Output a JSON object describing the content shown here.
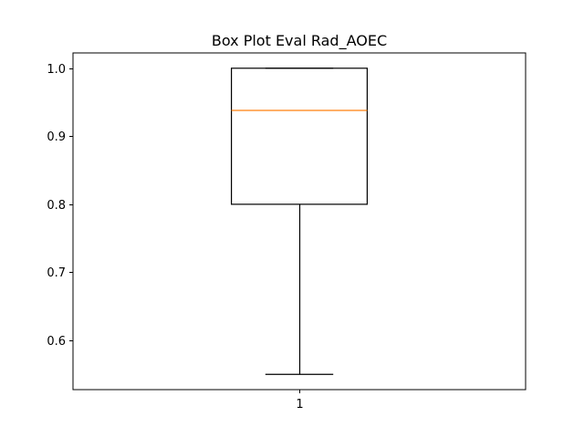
{
  "chart_data": {
    "type": "boxplot",
    "title": "Box Plot Eval Rad_AOEC",
    "xlabel": "",
    "ylabel": "",
    "categories": [
      "1"
    ],
    "boxes": [
      {
        "label": "1",
        "whisker_low": 0.55,
        "q1": 0.8,
        "median": 0.938,
        "q3": 1.0,
        "whisker_high": 1.0
      }
    ],
    "xlim": [
      0.5,
      1.5
    ],
    "ylim": [
      0.5275,
      1.0225
    ],
    "yticks": [
      0.6,
      0.7,
      0.8,
      0.9,
      1.0
    ],
    "ytick_labels": [
      "0.6",
      "0.7",
      "0.8",
      "0.9",
      "1.0"
    ],
    "grid": false,
    "colors": {
      "box": "#000000",
      "median": "#ff7f0e",
      "whisker": "#000000",
      "axes": "#000000"
    }
  }
}
